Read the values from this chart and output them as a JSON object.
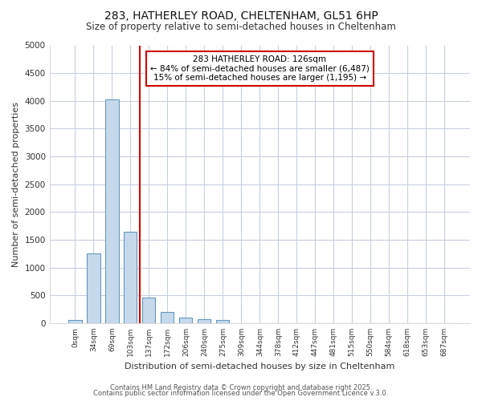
{
  "title_line1": "283, HATHERLEY ROAD, CHELTENHAM, GL51 6HP",
  "title_line2": "Size of property relative to semi-detached houses in Cheltenham",
  "xlabel": "Distribution of semi-detached houses by size in Cheltenham",
  "ylabel": "Number of semi-detached properties",
  "bar_labels": [
    "0sqm",
    "34sqm",
    "69sqm",
    "103sqm",
    "137sqm",
    "172sqm",
    "206sqm",
    "240sqm",
    "275sqm",
    "309sqm",
    "344sqm",
    "378sqm",
    "412sqm",
    "447sqm",
    "481sqm",
    "515sqm",
    "550sqm",
    "584sqm",
    "618sqm",
    "653sqm",
    "687sqm"
  ],
  "bar_values": [
    50,
    1250,
    4020,
    1640,
    460,
    205,
    100,
    65,
    50,
    0,
    0,
    0,
    0,
    0,
    0,
    0,
    0,
    0,
    0,
    0,
    0
  ],
  "bar_color": "#c6d9ec",
  "bar_edgecolor": "#6699bb",
  "vline_x": 3.5,
  "vline_color": "#cc0000",
  "annotation_title": "283 HATHERLEY ROAD: 126sqm",
  "annotation_line1": "← 84% of semi-detached houses are smaller (6,487)",
  "annotation_line2": "15% of semi-detached houses are larger (1,195) →",
  "annotation_box_facecolor": "white",
  "annotation_box_edgecolor": "#cc0000",
  "ylim": [
    0,
    5000
  ],
  "yticks": [
    0,
    500,
    1000,
    1500,
    2000,
    2500,
    3000,
    3500,
    4000,
    4500,
    5000
  ],
  "footer_line1": "Contains HM Land Registry data © Crown copyright and database right 2025.",
  "footer_line2": "Contains public sector information licensed under the Open Government Licence v.3.0.",
  "bg_color": "#ffffff",
  "plot_bg_color": "#ffffff",
  "grid_color": "#c8d0e0"
}
